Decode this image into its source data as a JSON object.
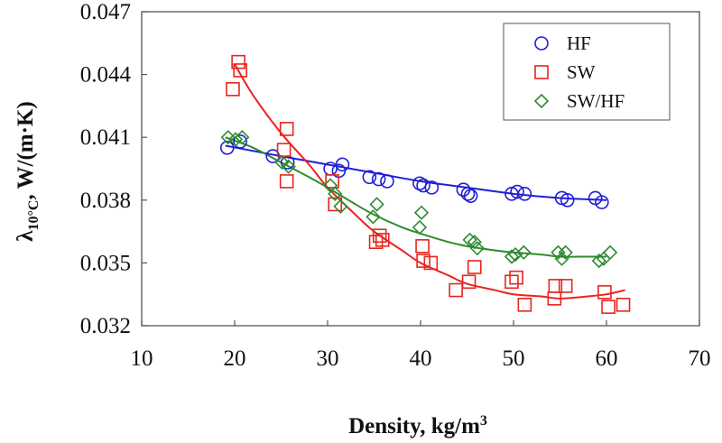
{
  "chart_data": {
    "type": "scatter",
    "xlabel_main": "Density, kg/m",
    "xlabel_sup": "3",
    "ylabel_lambda": "λ",
    "ylabel_sub": "10°C",
    "ylabel_units": ", W/(m·K)",
    "xlim": [
      10,
      70
    ],
    "ylim": [
      0.032,
      0.047
    ],
    "x_ticks": [
      "10",
      "20",
      "30",
      "40",
      "50",
      "60",
      "70"
    ],
    "y_ticks": [
      "0.032",
      "0.035",
      "0.038",
      "0.041",
      "0.044",
      "0.047"
    ],
    "grid": false,
    "legend_position": "top-right",
    "series": [
      {
        "name": "HF",
        "color": "#1f1fd6",
        "marker": "circle",
        "points": [
          [
            19.2,
            0.0405
          ],
          [
            20.6,
            0.0408
          ],
          [
            24.1,
            0.0401
          ],
          [
            25.7,
            0.0398
          ],
          [
            30.3,
            0.0395
          ],
          [
            31.2,
            0.0394
          ],
          [
            31.6,
            0.0397
          ],
          [
            34.5,
            0.0391
          ],
          [
            35.5,
            0.039
          ],
          [
            36.4,
            0.0389
          ],
          [
            39.9,
            0.0388
          ],
          [
            40.3,
            0.0387
          ],
          [
            41.2,
            0.0386
          ],
          [
            44.6,
            0.0385
          ],
          [
            45.1,
            0.0383
          ],
          [
            45.4,
            0.0382
          ],
          [
            49.8,
            0.0383
          ],
          [
            50.4,
            0.0384
          ],
          [
            51.2,
            0.0383
          ],
          [
            55.2,
            0.0381
          ],
          [
            55.8,
            0.038
          ],
          [
            58.8,
            0.0381
          ],
          [
            59.5,
            0.0379
          ]
        ],
        "fit": [
          [
            19,
            0.0406
          ],
          [
            25,
            0.0401
          ],
          [
            30,
            0.0397
          ],
          [
            35,
            0.0393
          ],
          [
            40,
            0.0389
          ],
          [
            45,
            0.0386
          ],
          [
            50,
            0.0383
          ],
          [
            55,
            0.0381
          ],
          [
            60,
            0.038
          ]
        ]
      },
      {
        "name": "SW",
        "color": "#e8241e",
        "marker": "square",
        "points": [
          [
            19.8,
            0.0433
          ],
          [
            20.4,
            0.0446
          ],
          [
            20.6,
            0.0442
          ],
          [
            25.3,
            0.0404
          ],
          [
            25.6,
            0.0414
          ],
          [
            25.6,
            0.0389
          ],
          [
            30.5,
            0.0389
          ],
          [
            30.8,
            0.0378
          ],
          [
            35.2,
            0.036
          ],
          [
            35.6,
            0.0363
          ],
          [
            35.9,
            0.0361
          ],
          [
            40.2,
            0.0358
          ],
          [
            40.3,
            0.0351
          ],
          [
            41.1,
            0.035
          ],
          [
            43.8,
            0.0337
          ],
          [
            45.2,
            0.0341
          ],
          [
            45.8,
            0.0348
          ],
          [
            49.8,
            0.0341
          ],
          [
            50.3,
            0.0343
          ],
          [
            51.2,
            0.033
          ],
          [
            54.4,
            0.0333
          ],
          [
            54.5,
            0.0339
          ],
          [
            55.6,
            0.0339
          ],
          [
            59.8,
            0.0336
          ],
          [
            60.2,
            0.0329
          ],
          [
            61.8,
            0.033
          ]
        ],
        "fit": [
          [
            20,
            0.0445
          ],
          [
            22,
            0.043
          ],
          [
            25,
            0.0412
          ],
          [
            28,
            0.0397
          ],
          [
            30,
            0.0386
          ],
          [
            33,
            0.0373
          ],
          [
            35,
            0.0365
          ],
          [
            38,
            0.0356
          ],
          [
            40,
            0.035
          ],
          [
            43,
            0.0344
          ],
          [
            45,
            0.034
          ],
          [
            48,
            0.0337
          ],
          [
            50,
            0.0335
          ],
          [
            53,
            0.0334
          ],
          [
            55,
            0.0333
          ],
          [
            58,
            0.0334
          ],
          [
            60,
            0.0335
          ],
          [
            62,
            0.0337
          ]
        ]
      },
      {
        "name": "SW/HF",
        "color": "#2e8b2e",
        "marker": "diamond",
        "points": [
          [
            19.3,
            0.041
          ],
          [
            20.1,
            0.0409
          ],
          [
            20.8,
            0.041
          ],
          [
            25.1,
            0.0398
          ],
          [
            25.8,
            0.0396
          ],
          [
            30.3,
            0.0387
          ],
          [
            30.8,
            0.0383
          ],
          [
            31.4,
            0.0377
          ],
          [
            34.9,
            0.0372
          ],
          [
            35.3,
            0.0378
          ],
          [
            39.9,
            0.0367
          ],
          [
            40.1,
            0.0374
          ],
          [
            45.3,
            0.0361
          ],
          [
            45.8,
            0.036
          ],
          [
            46.1,
            0.0357
          ],
          [
            49.8,
            0.0353
          ],
          [
            50.2,
            0.0354
          ],
          [
            51.1,
            0.0355
          ],
          [
            54.8,
            0.0355
          ],
          [
            55.2,
            0.0352
          ],
          [
            55.6,
            0.0355
          ],
          [
            59.2,
            0.0351
          ],
          [
            59.7,
            0.0352
          ],
          [
            60.4,
            0.0355
          ]
        ],
        "fit": [
          [
            19,
            0.041
          ],
          [
            22,
            0.0405
          ],
          [
            25,
            0.0398
          ],
          [
            28,
            0.0391
          ],
          [
            30,
            0.0386
          ],
          [
            33,
            0.0378
          ],
          [
            35,
            0.0373
          ],
          [
            38,
            0.0367
          ],
          [
            40,
            0.0364
          ],
          [
            43,
            0.036
          ],
          [
            45,
            0.0358
          ],
          [
            48,
            0.0356
          ],
          [
            50,
            0.0355
          ],
          [
            53,
            0.0354
          ],
          [
            55,
            0.0353
          ],
          [
            58,
            0.0353
          ],
          [
            60,
            0.0353
          ]
        ]
      }
    ]
  }
}
